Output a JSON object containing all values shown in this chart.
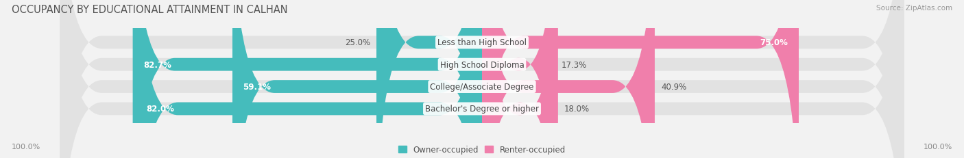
{
  "title": "OCCUPANCY BY EDUCATIONAL ATTAINMENT IN CALHAN",
  "source": "Source: ZipAtlas.com",
  "categories": [
    "Less than High School",
    "High School Diploma",
    "College/Associate Degree",
    "Bachelor's Degree or higher"
  ],
  "owner_pct": [
    25.0,
    82.7,
    59.1,
    82.0
  ],
  "renter_pct": [
    75.0,
    17.3,
    40.9,
    18.0
  ],
  "owner_color": "#45BCBC",
  "renter_color": "#F07FAB",
  "bg_color": "#f2f2f2",
  "bar_bg_color": "#e2e2e2",
  "title_fontsize": 10.5,
  "label_fontsize": 8.5,
  "cat_fontsize": 8.5,
  "pct_fontsize": 8.5,
  "x_left_label": "100.0%",
  "x_right_label": "100.0%"
}
